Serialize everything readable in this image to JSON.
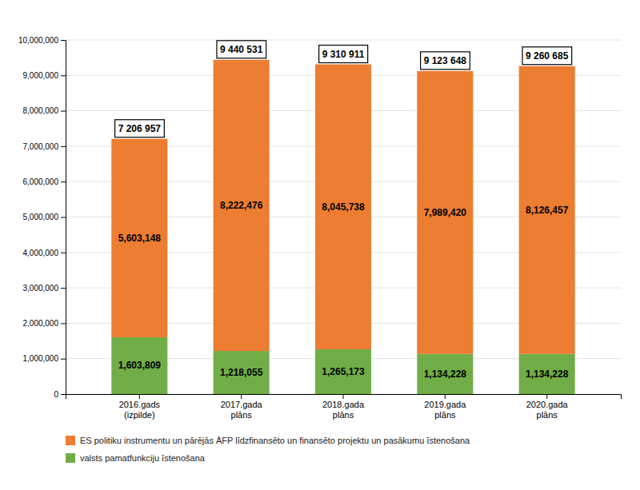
{
  "chart_data": {
    "type": "bar",
    "stacked": true,
    "categories": [
      "2016.gads\n(izpilde)",
      "2017.gada\nplāns",
      "2018.gada\nplāns",
      "2019.gada\nplāns",
      "2020.gada\nplāns"
    ],
    "series": [
      {
        "name": "valsts pamatfunkciju īstenošana",
        "color": "#70AD47",
        "values": [
          1603809,
          1218055,
          1265173,
          1134228,
          1134228
        ],
        "value_labels": [
          "1,603,809",
          "1,218,055",
          "1,265,173",
          "1,134,228",
          "1,134,228"
        ]
      },
      {
        "name": "ES politiku instrumentu un pārējās ĀFP līdzfinansēto un finansēto projektu un pasākumu īstenošana",
        "color": "#ED7D31",
        "values": [
          5603148,
          8222476,
          8045738,
          7989420,
          8126457
        ],
        "value_labels": [
          "5,603,148",
          "8,222,476",
          "8,045,738",
          "7,989,420",
          "8,126,457"
        ]
      }
    ],
    "totals": [
      7206957,
      9440531,
      9310911,
      9123648,
      9260685
    ],
    "total_labels": [
      "7 206 957",
      "9 440 531",
      "9 310 911",
      "9 123 648",
      "9 260 685"
    ],
    "data_labels": true,
    "ylim": [
      0,
      10000000
    ],
    "yticks": [
      0,
      {
        "value": 1000000,
        "label": "1,000,000"
      },
      {
        "value": 2000000,
        "label": "2,000,000"
      },
      {
        "value": 3000000,
        "label": "3,000,000"
      },
      {
        "value": 4000000,
        "label": "4,000,000"
      },
      {
        "value": 5000000,
        "label": "5,000,000"
      },
      {
        "value": 6000000,
        "label": "6,000,000"
      },
      {
        "value": 7000000,
        "label": "7,000,000"
      },
      {
        "value": 8000000,
        "label": "8,000,000"
      },
      {
        "value": 9000000,
        "label": "9,000,000"
      },
      {
        "value": 10000000,
        "label": "10,000,000"
      }
    ],
    "grid": true,
    "legend": "bottom"
  }
}
